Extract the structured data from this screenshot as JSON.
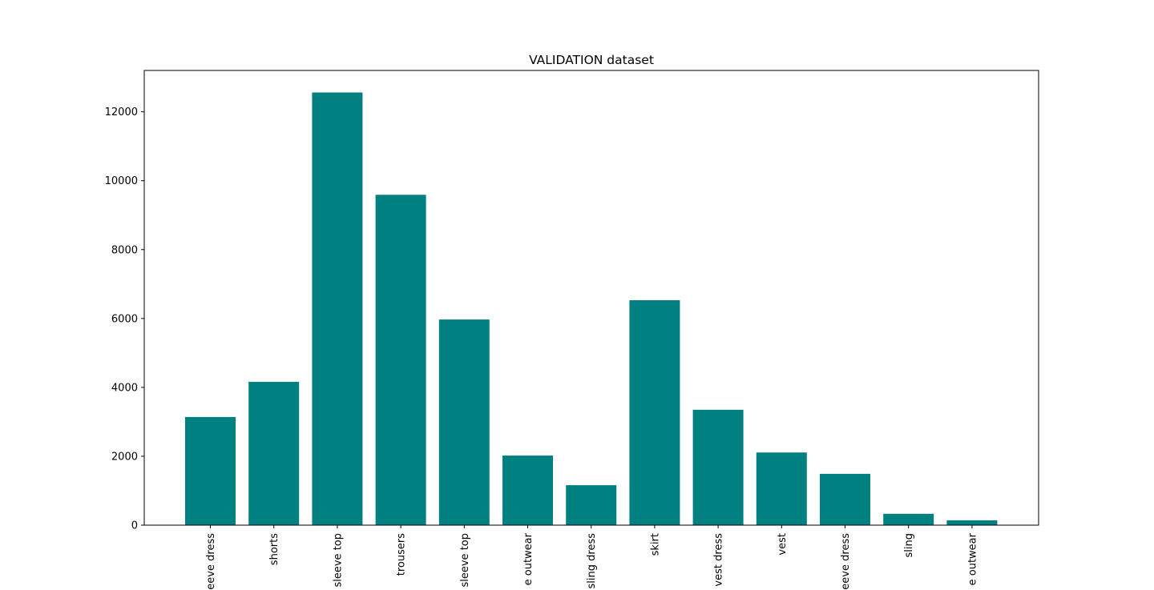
{
  "chart_data": {
    "type": "bar",
    "title": "VALIDATION dataset",
    "xlabel": "",
    "ylabel": "",
    "categories": [
      "eeve dress",
      "shorts",
      "sleeve top",
      "trousers",
      "sleeve top",
      "e outwear",
      "sling dress",
      "skirt",
      "vest dress",
      "vest",
      "eeve dress",
      "sling",
      "e outwear"
    ],
    "values": [
      3140,
      4160,
      12560,
      9590,
      5970,
      2020,
      1160,
      6530,
      3350,
      2110,
      1490,
      330,
      140
    ],
    "ylim": [
      0,
      13200
    ],
    "yticks": [
      0,
      2000,
      4000,
      6000,
      8000,
      10000,
      12000
    ],
    "bar_color": "#008080",
    "grid": false
  }
}
